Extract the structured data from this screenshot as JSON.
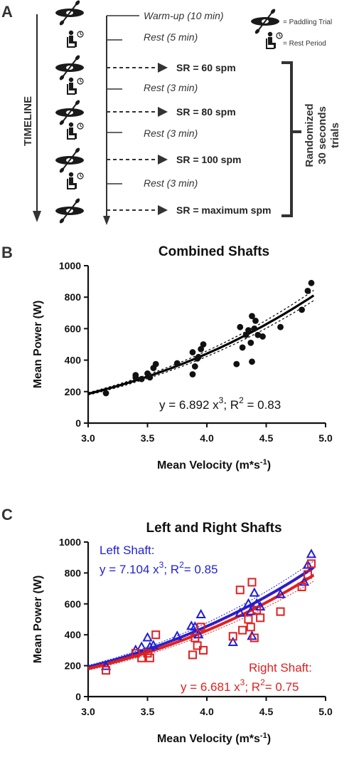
{
  "panelA": {
    "letter": "A",
    "timeline_label": "TIMELINE",
    "steps": [
      {
        "text": "Warm-up (10 min)",
        "kind": "rest"
      },
      {
        "text": "Rest (5 min)",
        "kind": "rest"
      },
      {
        "text": "SR = 60 spm",
        "kind": "trial"
      },
      {
        "text": "Rest (3 min)",
        "kind": "rest"
      },
      {
        "text": "SR = 80 spm",
        "kind": "trial"
      },
      {
        "text": "Rest (3 min)",
        "kind": "rest"
      },
      {
        "text": "SR = 100 spm",
        "kind": "trial"
      },
      {
        "text": "Rest (3 min)",
        "kind": "rest"
      },
      {
        "text": "SR = maximum spm",
        "kind": "trial"
      }
    ],
    "legend": {
      "trial": "= Paddling Trial",
      "rest": "= Rest Period"
    },
    "bracket_label": [
      "Randomized",
      "30 seconds",
      "trials"
    ]
  },
  "chart_data": [
    {
      "panel": "B",
      "type": "scatter",
      "title": "Combined  Shafts",
      "xlabel": "Mean Velocity (m*s⁻¹)",
      "ylabel": "Mean Power (W)",
      "xlim": [
        3.0,
        5.0
      ],
      "ylim": [
        0,
        1000
      ],
      "xticks": [
        "3.0",
        "3.5",
        "4.0",
        "4.5",
        "5.0"
      ],
      "yticks": [
        "0",
        "200",
        "400",
        "600",
        "800",
        "1000"
      ],
      "equation": {
        "prefix": "y = 6.892  x",
        "exp": "3",
        "mid": "; R",
        "exp2": "2",
        "suffix": " = 0.83"
      },
      "fit": {
        "coef": 6.892,
        "power": 3
      },
      "colors": {
        "points": "#111111",
        "fit": "#000000"
      },
      "points": [
        [
          3.15,
          190
        ],
        [
          3.4,
          305
        ],
        [
          3.4,
          290
        ],
        [
          3.45,
          280
        ],
        [
          3.5,
          315
        ],
        [
          3.52,
          290
        ],
        [
          3.55,
          350
        ],
        [
          3.57,
          375
        ],
        [
          3.75,
          380
        ],
        [
          3.88,
          310
        ],
        [
          3.88,
          450
        ],
        [
          3.9,
          360
        ],
        [
          3.92,
          410
        ],
        [
          3.93,
          420
        ],
        [
          3.95,
          470
        ],
        [
          3.97,
          500
        ],
        [
          4.25,
          375
        ],
        [
          4.28,
          610
        ],
        [
          4.3,
          480
        ],
        [
          4.33,
          560
        ],
        [
          4.35,
          590
        ],
        [
          4.37,
          510
        ],
        [
          4.38,
          390
        ],
        [
          4.38,
          680
        ],
        [
          4.4,
          600
        ],
        [
          4.41,
          650
        ],
        [
          4.43,
          560
        ],
        [
          4.47,
          550
        ],
        [
          4.62,
          610
        ],
        [
          4.8,
          720
        ],
        [
          4.85,
          840
        ],
        [
          4.88,
          890
        ]
      ]
    },
    {
      "panel": "C",
      "type": "scatter",
      "title": "Left and Right Shafts",
      "xlabel": "Mean Velocity (m*s⁻¹)",
      "ylabel": "Mean Power (W)",
      "xlim": [
        3.0,
        5.0
      ],
      "ylim": [
        0,
        1000
      ],
      "xticks": [
        "3.0",
        "3.5",
        "4.0",
        "4.5",
        "5.0"
      ],
      "yticks": [
        "0",
        "200",
        "400",
        "600",
        "800",
        "1000"
      ],
      "series": [
        {
          "name": "Left Shaft:",
          "equation": {
            "prefix": "y = 7.104 x",
            "exp": "3",
            "mid": "; R",
            "exp2": "2",
            "suffix": "= 0.85"
          },
          "fit": {
            "coef": 7.104,
            "power": 3
          },
          "color": "#1f1fd6",
          "marker": "triangle",
          "points": [
            [
              3.15,
              195
            ],
            [
              3.4,
              300
            ],
            [
              3.45,
              320
            ],
            [
              3.5,
              380
            ],
            [
              3.52,
              320
            ],
            [
              3.55,
              330
            ],
            [
              3.75,
              390
            ],
            [
              3.87,
              455
            ],
            [
              3.9,
              450
            ],
            [
              3.93,
              400
            ],
            [
              3.95,
              530
            ],
            [
              4.22,
              350
            ],
            [
              4.28,
              540
            ],
            [
              4.35,
              600
            ],
            [
              4.37,
              550
            ],
            [
              4.38,
              390
            ],
            [
              4.4,
              670
            ],
            [
              4.42,
              600
            ],
            [
              4.45,
              580
            ],
            [
              4.62,
              660
            ],
            [
              4.82,
              740
            ],
            [
              4.85,
              850
            ],
            [
              4.88,
              920
            ]
          ]
        },
        {
          "name": "Right Shaft:",
          "equation": {
            "prefix": "y = 6.681 x",
            "exp": "3",
            "mid": "; R",
            "exp2": "2",
            "suffix": "= 0.75"
          },
          "fit": {
            "coef": 6.681,
            "power": 3
          },
          "color": "#e02020",
          "marker": "square",
          "points": [
            [
              3.15,
              170
            ],
            [
              3.4,
              280
            ],
            [
              3.45,
              250
            ],
            [
              3.5,
              280
            ],
            [
              3.52,
              250
            ],
            [
              3.57,
              400
            ],
            [
              3.88,
              270
            ],
            [
              3.9,
              380
            ],
            [
              3.92,
              330
            ],
            [
              3.95,
              450
            ],
            [
              3.97,
              300
            ],
            [
              4.22,
              390
            ],
            [
              4.28,
              690
            ],
            [
              4.3,
              430
            ],
            [
              4.35,
              500
            ],
            [
              4.37,
              450
            ],
            [
              4.38,
              740
            ],
            [
              4.4,
              380
            ],
            [
              4.42,
              560
            ],
            [
              4.45,
              510
            ],
            [
              4.62,
              550
            ],
            [
              4.8,
              710
            ],
            [
              4.85,
              790
            ],
            [
              4.88,
              860
            ]
          ]
        }
      ]
    }
  ]
}
